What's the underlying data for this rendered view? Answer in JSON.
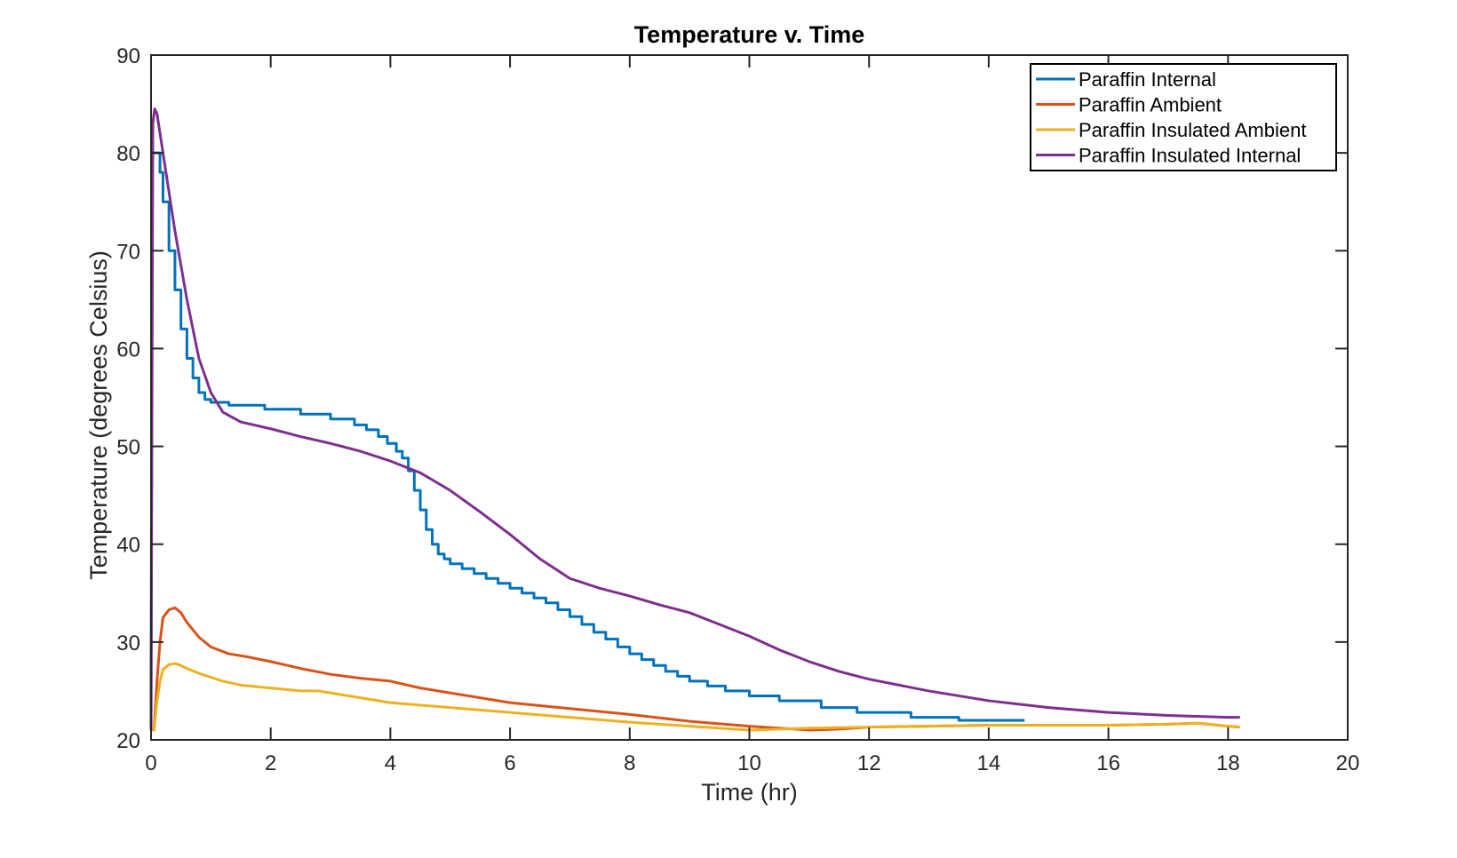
{
  "chart_data": {
    "type": "line",
    "title": "Temperature v. Time",
    "xlabel": "Time (hr)",
    "ylabel": "Temperature (degrees Celsius)",
    "xlim": [
      0,
      20
    ],
    "ylim": [
      20,
      90
    ],
    "xticks": [
      "0",
      "2",
      "4",
      "6",
      "8",
      "10",
      "12",
      "14",
      "16",
      "18",
      "20"
    ],
    "yticks": [
      "20",
      "30",
      "40",
      "50",
      "60",
      "70",
      "80",
      "90"
    ],
    "grid": false,
    "legend_position": "top-right",
    "series": [
      {
        "name": "Paraffin Internal",
        "color": "#0072BD",
        "step": true,
        "x": [
          0,
          0.02,
          0.06,
          0.1,
          0.15,
          0.2,
          0.3,
          0.4,
          0.5,
          0.6,
          0.7,
          0.8,
          0.9,
          1.0,
          1.3,
          1.9,
          2.5,
          3.0,
          3.4,
          3.6,
          3.8,
          3.95,
          4.1,
          4.2,
          4.3,
          4.4,
          4.5,
          4.6,
          4.7,
          4.8,
          4.9,
          5.0,
          5.2,
          5.4,
          5.6,
          5.8,
          6.0,
          6.2,
          6.4,
          6.6,
          6.8,
          7.0,
          7.2,
          7.4,
          7.6,
          7.8,
          8.0,
          8.2,
          8.4,
          8.6,
          8.8,
          9.0,
          9.3,
          9.6,
          10.0,
          10.5,
          11.2,
          11.8,
          12.7,
          13.5,
          14.6
        ],
        "y": [
          21,
          80,
          80,
          80,
          78,
          75,
          70,
          66,
          62,
          59,
          57,
          55.5,
          54.8,
          54.5,
          54.2,
          53.8,
          53.3,
          52.8,
          52.2,
          51.7,
          51.0,
          50.3,
          49.5,
          48.8,
          47.5,
          45.5,
          43.5,
          41.5,
          40.0,
          39.0,
          38.5,
          38.0,
          37.5,
          37.0,
          36.5,
          36.0,
          35.5,
          35.0,
          34.5,
          34.0,
          33.3,
          32.6,
          31.8,
          31.0,
          30.3,
          29.5,
          28.8,
          28.2,
          27.6,
          27.0,
          26.5,
          26.0,
          25.5,
          25.0,
          24.5,
          24.0,
          23.3,
          22.8,
          22.3,
          22.0,
          22.0
        ]
      },
      {
        "name": "Paraffin Ambient",
        "color": "#D95319",
        "x": [
          0,
          0.05,
          0.1,
          0.15,
          0.2,
          0.3,
          0.4,
          0.5,
          0.6,
          0.8,
          1.0,
          1.3,
          1.6,
          2.0,
          2.5,
          3.0,
          3.5,
          4.0,
          4.5,
          5.0,
          5.5,
          6.0,
          7.0,
          8.0,
          9.0,
          10.0,
          11.0,
          11.5,
          12.0,
          13.0,
          14.0,
          15.0,
          16.0,
          17.0,
          17.5,
          18.0,
          18.2
        ],
        "y": [
          21,
          21,
          26,
          30,
          32.5,
          33.3,
          33.5,
          33.0,
          32.0,
          30.5,
          29.5,
          28.8,
          28.5,
          28.0,
          27.3,
          26.7,
          26.3,
          26.0,
          25.3,
          24.8,
          24.3,
          23.8,
          23.2,
          22.6,
          21.9,
          21.4,
          21.0,
          21.1,
          21.3,
          21.4,
          21.5,
          21.5,
          21.5,
          21.6,
          21.7,
          21.4,
          21.3
        ]
      },
      {
        "name": "Paraffin Insulated Ambient",
        "color": "#EDB120",
        "x": [
          0,
          0.05,
          0.1,
          0.15,
          0.2,
          0.3,
          0.4,
          0.5,
          0.6,
          0.8,
          1.0,
          1.2,
          1.5,
          2.0,
          2.5,
          2.8,
          3.0,
          3.5,
          4.0,
          5.0,
          6.0,
          7.0,
          8.0,
          9.0,
          10.0,
          11.0,
          12.0,
          13.0,
          14.0,
          15.0,
          16.0,
          17.0,
          17.5,
          18.0,
          18.2
        ],
        "y": [
          21,
          21,
          24,
          26,
          27.2,
          27.7,
          27.8,
          27.6,
          27.3,
          26.8,
          26.4,
          26.0,
          25.6,
          25.3,
          25.0,
          25.0,
          24.8,
          24.3,
          23.8,
          23.3,
          22.8,
          22.3,
          21.8,
          21.4,
          21.0,
          21.2,
          21.3,
          21.4,
          21.5,
          21.5,
          21.5,
          21.6,
          21.7,
          21.4,
          21.3
        ]
      },
      {
        "name": "Paraffin Insulated Internal",
        "color": "#7E2F8E",
        "x": [
          0,
          0.03,
          0.06,
          0.1,
          0.2,
          0.4,
          0.6,
          0.8,
          1.0,
          1.2,
          1.5,
          2.0,
          2.5,
          3.0,
          3.5,
          4.0,
          4.5,
          5.0,
          5.5,
          6.0,
          6.5,
          7.0,
          7.5,
          8.0,
          8.5,
          9.0,
          9.5,
          10.0,
          10.5,
          11.0,
          11.5,
          12.0,
          13.0,
          14.0,
          15.0,
          16.0,
          17.0,
          18.0,
          18.2
        ],
        "y": [
          21,
          83,
          84.5,
          84,
          80,
          72,
          65,
          59,
          55.5,
          53.5,
          52.5,
          51.8,
          51.0,
          50.3,
          49.5,
          48.5,
          47.3,
          45.5,
          43.3,
          41.0,
          38.5,
          36.5,
          35.5,
          34.7,
          33.8,
          33.0,
          31.8,
          30.6,
          29.2,
          28.0,
          27.0,
          26.2,
          25.0,
          24.0,
          23.3,
          22.8,
          22.5,
          22.3,
          22.3
        ]
      }
    ]
  }
}
